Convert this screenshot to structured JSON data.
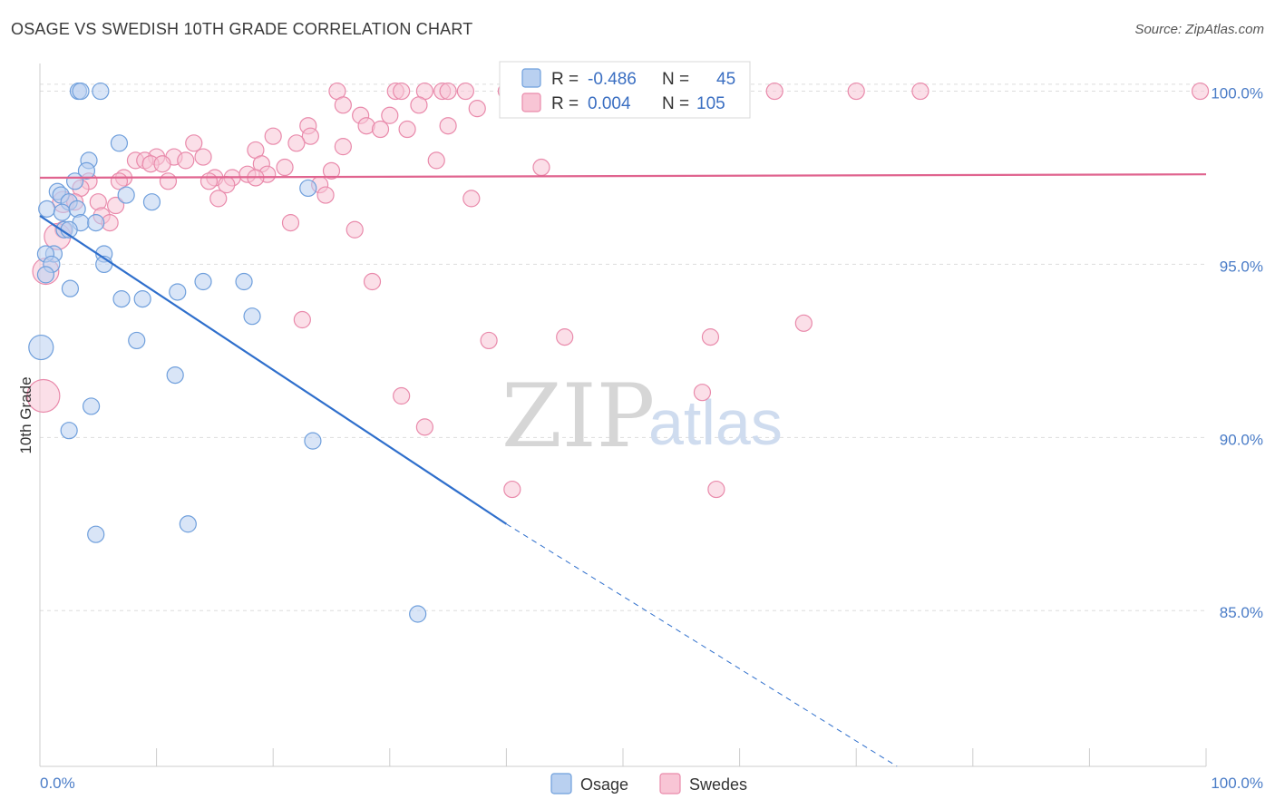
{
  "header": {
    "title": "OSAGE VS SWEDISH 10TH GRADE CORRELATION CHART",
    "source": "Source: ZipAtlas.com"
  },
  "legend": {
    "rows": [
      {
        "r_label": "R = ",
        "r_value": "-0.486",
        "n_label": "N = ",
        "n_value": "45"
      },
      {
        "r_label": "R = ",
        "r_value": "0.004",
        "n_label": "N = ",
        "n_value": "105"
      }
    ],
    "bottom": [
      "Osage",
      "Swedes"
    ]
  },
  "watermark": {
    "zip": "ZIP",
    "atlas": "atlas"
  },
  "colors": {
    "osage_fill": "#b9d0f0",
    "osage_stroke": "#6f9fdc",
    "osage_line": "#2f6fcc",
    "swedes_fill": "#f8c5d5",
    "swedes_stroke": "#e98aab",
    "swedes_line": "#e0648f",
    "grid": "#dddddd",
    "axis": "#cccccc"
  },
  "chart_data": {
    "type": "scatter",
    "title": "OSAGE VS SWEDISH 10TH GRADE CORRELATION CHART",
    "xlabel": "",
    "ylabel": "10th Grade",
    "xlim": [
      0,
      100
    ],
    "ylim": [
      80.5,
      100.8
    ],
    "x_tick_labels": [
      "0.0%",
      "100.0%"
    ],
    "y_ticks": [
      85,
      90,
      95,
      100
    ],
    "y_tick_labels": [
      "85.0%",
      "90.0%",
      "95.0%",
      "100.0%"
    ],
    "grid": true,
    "legend_position": "top-center",
    "series": [
      {
        "name": "Osage",
        "r": -0.486,
        "n": 45,
        "trend": {
          "x0": 0,
          "y0": 96.4,
          "x1": 40,
          "y1": 87.5,
          "dashed_to_x": 73.5,
          "dashed_to_y": 80.5
        },
        "points": [
          {
            "x": 3.3,
            "y": 100.0,
            "s": 1
          },
          {
            "x": 3.5,
            "y": 100.0,
            "s": 1
          },
          {
            "x": 5.2,
            "y": 100.0,
            "s": 1
          },
          {
            "x": 6.8,
            "y": 98.5,
            "s": 1
          },
          {
            "x": 4.2,
            "y": 98.0,
            "s": 1
          },
          {
            "x": 4.0,
            "y": 97.7,
            "s": 1
          },
          {
            "x": 3.0,
            "y": 97.4,
            "s": 1
          },
          {
            "x": 1.5,
            "y": 97.1,
            "s": 1
          },
          {
            "x": 1.8,
            "y": 97.0,
            "s": 1
          },
          {
            "x": 7.4,
            "y": 97.0,
            "s": 1
          },
          {
            "x": 2.5,
            "y": 96.8,
            "s": 1
          },
          {
            "x": 0.6,
            "y": 96.6,
            "s": 1
          },
          {
            "x": 1.9,
            "y": 96.5,
            "s": 1
          },
          {
            "x": 3.2,
            "y": 96.6,
            "s": 1
          },
          {
            "x": 9.6,
            "y": 96.8,
            "s": 1
          },
          {
            "x": 3.5,
            "y": 96.2,
            "s": 1
          },
          {
            "x": 4.8,
            "y": 96.2,
            "s": 1
          },
          {
            "x": 2.1,
            "y": 96.0,
            "s": 1
          },
          {
            "x": 2.5,
            "y": 96.0,
            "s": 1
          },
          {
            "x": 1.2,
            "y": 95.3,
            "s": 1
          },
          {
            "x": 0.5,
            "y": 95.3,
            "s": 1
          },
          {
            "x": 5.5,
            "y": 95.3,
            "s": 1
          },
          {
            "x": 5.5,
            "y": 95.0,
            "s": 1
          },
          {
            "x": 1.0,
            "y": 95.0,
            "s": 1
          },
          {
            "x": 0.5,
            "y": 94.7,
            "s": 1
          },
          {
            "x": 2.6,
            "y": 94.3,
            "s": 1
          },
          {
            "x": 7.0,
            "y": 94.0,
            "s": 1
          },
          {
            "x": 8.8,
            "y": 94.0,
            "s": 1
          },
          {
            "x": 11.8,
            "y": 94.2,
            "s": 1
          },
          {
            "x": 14.0,
            "y": 94.5,
            "s": 1
          },
          {
            "x": 17.5,
            "y": 94.5,
            "s": 1
          },
          {
            "x": 18.2,
            "y": 93.5,
            "s": 1
          },
          {
            "x": 23.0,
            "y": 97.2,
            "s": 1
          },
          {
            "x": 8.3,
            "y": 92.8,
            "s": 1
          },
          {
            "x": 0.1,
            "y": 92.6,
            "s": 1.5
          },
          {
            "x": 11.6,
            "y": 91.8,
            "s": 1
          },
          {
            "x": 4.4,
            "y": 90.9,
            "s": 1
          },
          {
            "x": 2.5,
            "y": 90.2,
            "s": 1
          },
          {
            "x": 23.4,
            "y": 89.9,
            "s": 1
          },
          {
            "x": 12.7,
            "y": 87.5,
            "s": 1
          },
          {
            "x": 4.8,
            "y": 87.2,
            "s": 1
          },
          {
            "x": 32.4,
            "y": 84.9,
            "s": 1
          }
        ]
      },
      {
        "name": "Swedes",
        "r": 0.004,
        "n": 105,
        "trend": {
          "x0": 0,
          "y0": 97.5,
          "x1": 100,
          "y1": 97.6
        },
        "points": [
          {
            "x": 25.5,
            "y": 100.0,
            "s": 1
          },
          {
            "x": 30.5,
            "y": 100.0,
            "s": 1
          },
          {
            "x": 31.0,
            "y": 100.0,
            "s": 1
          },
          {
            "x": 33.0,
            "y": 100.0,
            "s": 1
          },
          {
            "x": 34.5,
            "y": 100.0,
            "s": 1
          },
          {
            "x": 35.0,
            "y": 100.0,
            "s": 1
          },
          {
            "x": 36.5,
            "y": 100.0,
            "s": 1
          },
          {
            "x": 40.0,
            "y": 100.0,
            "s": 1
          },
          {
            "x": 42.5,
            "y": 100.0,
            "s": 1
          },
          {
            "x": 47.0,
            "y": 100.0,
            "s": 1
          },
          {
            "x": 50.0,
            "y": 100.0,
            "s": 1
          },
          {
            "x": 53.0,
            "y": 100.0,
            "s": 1
          },
          {
            "x": 57.0,
            "y": 100.0,
            "s": 1
          },
          {
            "x": 59.5,
            "y": 100.0,
            "s": 1
          },
          {
            "x": 63.0,
            "y": 100.0,
            "s": 1
          },
          {
            "x": 70.0,
            "y": 100.0,
            "s": 1
          },
          {
            "x": 75.5,
            "y": 100.0,
            "s": 1
          },
          {
            "x": 99.5,
            "y": 100.0,
            "s": 1
          },
          {
            "x": 41.0,
            "y": 99.8,
            "s": 1
          },
          {
            "x": 43.0,
            "y": 99.7,
            "s": 1
          },
          {
            "x": 26.0,
            "y": 99.6,
            "s": 1
          },
          {
            "x": 32.5,
            "y": 99.6,
            "s": 1
          },
          {
            "x": 37.5,
            "y": 99.5,
            "s": 1
          },
          {
            "x": 27.5,
            "y": 99.3,
            "s": 1
          },
          {
            "x": 30.0,
            "y": 99.3,
            "s": 1
          },
          {
            "x": 28.0,
            "y": 99.0,
            "s": 1
          },
          {
            "x": 29.2,
            "y": 98.9,
            "s": 1
          },
          {
            "x": 31.5,
            "y": 98.9,
            "s": 1
          },
          {
            "x": 35.0,
            "y": 99.0,
            "s": 1
          },
          {
            "x": 23.0,
            "y": 99.0,
            "s": 1
          },
          {
            "x": 23.2,
            "y": 98.7,
            "s": 1
          },
          {
            "x": 20.0,
            "y": 98.7,
            "s": 1
          },
          {
            "x": 22.0,
            "y": 98.5,
            "s": 1
          },
          {
            "x": 26.0,
            "y": 98.4,
            "s": 1
          },
          {
            "x": 18.5,
            "y": 98.3,
            "s": 1
          },
          {
            "x": 13.2,
            "y": 98.5,
            "s": 1
          },
          {
            "x": 10.0,
            "y": 98.1,
            "s": 1
          },
          {
            "x": 11.5,
            "y": 98.1,
            "s": 1
          },
          {
            "x": 14.0,
            "y": 98.1,
            "s": 1
          },
          {
            "x": 8.2,
            "y": 98.0,
            "s": 1
          },
          {
            "x": 9.0,
            "y": 98.0,
            "s": 1
          },
          {
            "x": 12.5,
            "y": 98.0,
            "s": 1
          },
          {
            "x": 9.5,
            "y": 97.9,
            "s": 1
          },
          {
            "x": 10.5,
            "y": 97.9,
            "s": 1
          },
          {
            "x": 19.0,
            "y": 97.9,
            "s": 1
          },
          {
            "x": 21.0,
            "y": 97.8,
            "s": 1
          },
          {
            "x": 34.0,
            "y": 98.0,
            "s": 1
          },
          {
            "x": 43.0,
            "y": 97.8,
            "s": 1
          },
          {
            "x": 25.0,
            "y": 97.7,
            "s": 1
          },
          {
            "x": 19.5,
            "y": 97.6,
            "s": 1
          },
          {
            "x": 7.2,
            "y": 97.5,
            "s": 1
          },
          {
            "x": 15.0,
            "y": 97.5,
            "s": 1
          },
          {
            "x": 16.5,
            "y": 97.5,
            "s": 1
          },
          {
            "x": 17.8,
            "y": 97.6,
            "s": 1
          },
          {
            "x": 18.5,
            "y": 97.5,
            "s": 1
          },
          {
            "x": 4.2,
            "y": 97.4,
            "s": 1
          },
          {
            "x": 6.8,
            "y": 97.4,
            "s": 1
          },
          {
            "x": 11.0,
            "y": 97.4,
            "s": 1
          },
          {
            "x": 14.5,
            "y": 97.4,
            "s": 1
          },
          {
            "x": 16.0,
            "y": 97.3,
            "s": 1
          },
          {
            "x": 24.0,
            "y": 97.3,
            "s": 1
          },
          {
            "x": 3.5,
            "y": 97.2,
            "s": 1
          },
          {
            "x": 24.5,
            "y": 97.0,
            "s": 1
          },
          {
            "x": 15.3,
            "y": 96.9,
            "s": 1
          },
          {
            "x": 37.0,
            "y": 96.9,
            "s": 1
          },
          {
            "x": 2.0,
            "y": 96.8,
            "s": 1.3
          },
          {
            "x": 3.0,
            "y": 96.8,
            "s": 1
          },
          {
            "x": 5.0,
            "y": 96.8,
            "s": 1
          },
          {
            "x": 6.5,
            "y": 96.7,
            "s": 1
          },
          {
            "x": 5.3,
            "y": 96.4,
            "s": 1
          },
          {
            "x": 6.0,
            "y": 96.2,
            "s": 1
          },
          {
            "x": 21.5,
            "y": 96.2,
            "s": 1
          },
          {
            "x": 2.0,
            "y": 96.0,
            "s": 1
          },
          {
            "x": 27.0,
            "y": 96.0,
            "s": 1
          },
          {
            "x": 1.5,
            "y": 95.8,
            "s": 1.6
          },
          {
            "x": 0.5,
            "y": 94.8,
            "s": 1.6
          },
          {
            "x": 28.5,
            "y": 94.5,
            "s": 1
          },
          {
            "x": 22.5,
            "y": 93.4,
            "s": 1
          },
          {
            "x": 65.5,
            "y": 93.3,
            "s": 1
          },
          {
            "x": 45.0,
            "y": 92.9,
            "s": 1
          },
          {
            "x": 57.5,
            "y": 92.9,
            "s": 1
          },
          {
            "x": 38.5,
            "y": 92.8,
            "s": 1
          },
          {
            "x": 0.3,
            "y": 91.2,
            "s": 2.0
          },
          {
            "x": 31.0,
            "y": 91.2,
            "s": 1
          },
          {
            "x": 56.8,
            "y": 91.3,
            "s": 1
          },
          {
            "x": 33.0,
            "y": 90.3,
            "s": 1
          },
          {
            "x": 40.5,
            "y": 88.5,
            "s": 1
          },
          {
            "x": 58.0,
            "y": 88.5,
            "s": 1
          }
        ]
      }
    ]
  }
}
